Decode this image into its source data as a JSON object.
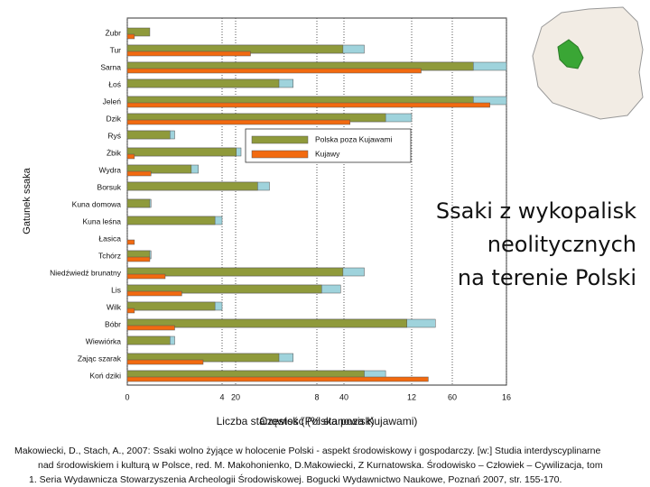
{
  "chart_data": {
    "type": "bar",
    "orientation": "horizontal",
    "title_lines": [
      "Ssaki z wykopalisk",
      "neolitycznych",
      "na terenie Polski"
    ],
    "ylabel": "Gatunek ssaka",
    "xlabels": [
      "Częstość (% stanowisk)",
      "Liczba stanowisk (Polska poza Kujawami)"
    ],
    "categories": [
      "Żubr",
      "Tur",
      "Sarna",
      "Łoś",
      "Jeleń",
      "Dzik",
      "Ryś",
      "Żbik",
      "Wydra",
      "Borsuk",
      "Kuna domowa",
      "Kuna leśna",
      "Łasica",
      "Tchórz",
      "Niedźwiedź brunatny",
      "Lis",
      "Wilk",
      "Bóbr",
      "Wiewiórka",
      "Zając szarak",
      "Koń dziki"
    ],
    "series": [
      {
        "name": "Polska poza Kujawami",
        "color": "#8f9a3b",
        "upper_color": "#9fd3dc",
        "values": [
          0.95,
          9.1,
          14.6,
          6.4,
          14.6,
          10.9,
          1.8,
          4.6,
          2.7,
          5.5,
          0.95,
          3.7,
          null,
          0.95,
          9.1,
          8.2,
          3.7,
          11.8,
          1.8,
          6.4,
          10.0
        ],
        "upper": [
          null,
          10.0,
          16.0,
          7.0,
          16.0,
          12.0,
          2.0,
          4.8,
          3.0,
          6.0,
          1.0,
          4.0,
          null,
          1.0,
          10.0,
          9.0,
          4.0,
          13.0,
          2.0,
          7.0,
          10.9
        ]
      },
      {
        "name": "Kujawy",
        "color": "#f26a10",
        "values": [
          0.3,
          5.2,
          12.4,
          null,
          15.3,
          9.4,
          null,
          0.3,
          1.0,
          null,
          null,
          null,
          0.3,
          0.95,
          1.6,
          2.3,
          0.3,
          2.0,
          null,
          3.2,
          12.7
        ]
      }
    ],
    "xlim": [
      0,
      16
    ],
    "xticks": [
      0,
      4,
      8,
      12,
      16
    ],
    "x2lim": [
      0,
      70
    ],
    "x2ticks": [
      20,
      40,
      60
    ],
    "grid": true
  },
  "caption": [
    "Makowiecki, D., Stach, A., 2007: Ssaki wolno żyjące w holocenie Polski - aspekt środowiskowy i gospodarczy. [w:] Studia interdyscyplinarne",
    "nad środowiskiem i kulturą w Polsce, red. M. Makohonienko, D.Makowiecki, Z Kurnatowska. Środowisko – Człowiek – Cywilizacja, tom",
    "1. Seria Wydawnicza Stowarzyszenia Archeologii Środowiskowej. Bogucki Wydawnictwo Naukowe, Poznań 2007, str. 155-170."
  ]
}
